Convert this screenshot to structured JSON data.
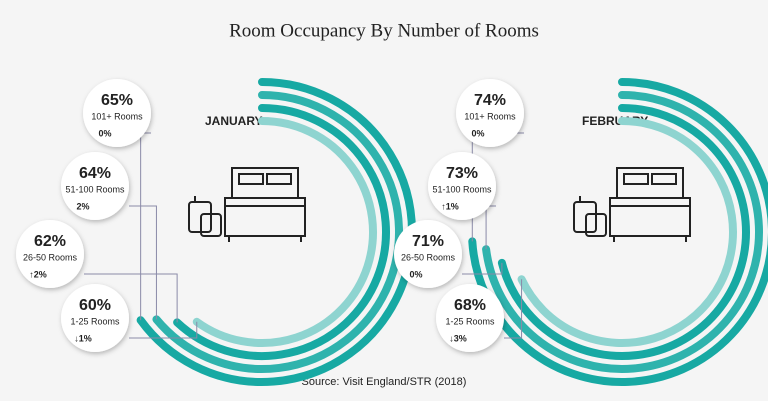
{
  "title": "Room Occupancy By Number of Rooms",
  "source": "Source: Visit England/STR (2018)",
  "chart_data": [
    {
      "type": "radial_bar",
      "title": "JANUARY",
      "categories": [
        "101+ Rooms",
        "51-100 Rooms",
        "26-50 Rooms",
        "1-25 Rooms"
      ],
      "values": [
        65,
        64,
        62,
        60
      ],
      "value_labels": [
        "65%",
        "64%",
        "62%",
        "60%"
      ],
      "change_labels": [
        "0%",
        "2%",
        "↑2%",
        "↓1%"
      ],
      "colors": [
        "#17a9a3",
        "#2fb3ad",
        "#17a9a3",
        "#8ed4d0"
      ]
    },
    {
      "type": "radial_bar",
      "title": "FEBRUARY",
      "categories": [
        "101+ Rooms",
        "51-100 Rooms",
        "26-50 Rooms",
        "1-25 Rooms"
      ],
      "values": [
        74,
        73,
        71,
        68
      ],
      "value_labels": [
        "74%",
        "73%",
        "71%",
        "68%"
      ],
      "change_labels": [
        "0%",
        "↑1%",
        "0%",
        "↓3%"
      ],
      "colors": [
        "#17a9a3",
        "#2fb3ad",
        "#17a9a3",
        "#8ed4d0"
      ]
    }
  ]
}
